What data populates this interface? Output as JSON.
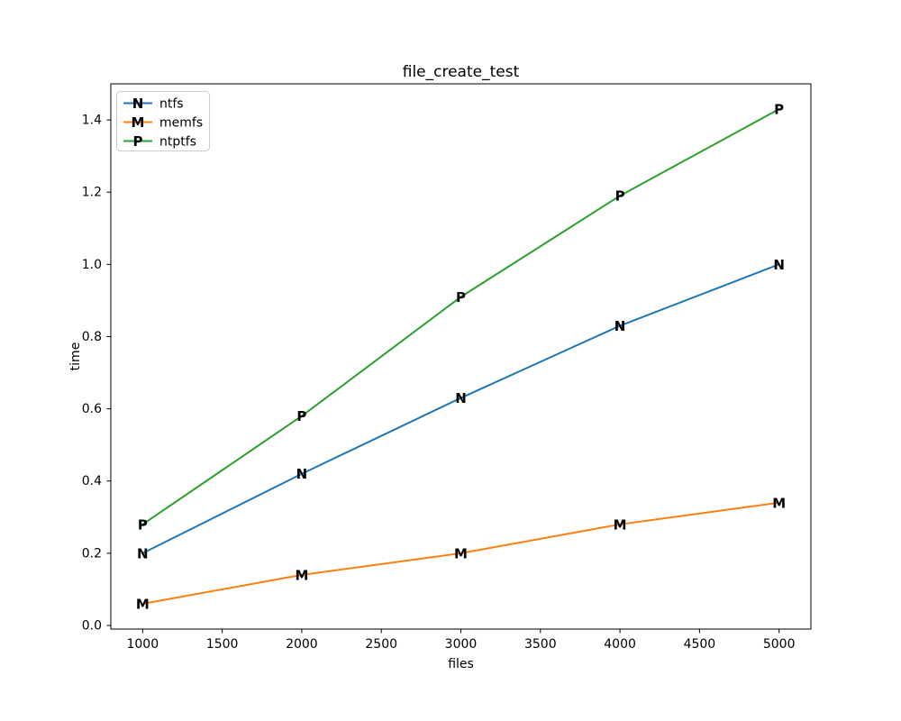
{
  "figure": {
    "background_color": "#ffffff",
    "spine_color": "#000000",
    "tick_color": "#000000",
    "legend_border_color": "#cccccc",
    "legend_background_color": "#ffffff"
  },
  "chart_data": {
    "type": "line",
    "title": "file_create_test",
    "xlabel": "files",
    "ylabel": "time",
    "x": [
      1000,
      2000,
      3000,
      4000,
      5000
    ],
    "series": [
      {
        "name": "ntfs",
        "marker": "N",
        "color": "#1f77b4",
        "values": [
          0.2,
          0.42,
          0.63,
          0.83,
          1.0
        ]
      },
      {
        "name": "memfs",
        "marker": "M",
        "color": "#ff7f0e",
        "values": [
          0.06,
          0.14,
          0.2,
          0.28,
          0.34
        ]
      },
      {
        "name": "ntptfs",
        "marker": "P",
        "color": "#2ca02c",
        "values": [
          0.28,
          0.58,
          0.91,
          1.19,
          1.43
        ]
      }
    ],
    "xlim": [
      800,
      5200
    ],
    "ylim": [
      -0.01,
      1.5
    ],
    "xticks": [
      1000,
      1500,
      2000,
      2500,
      3000,
      3500,
      4000,
      4500,
      5000
    ],
    "yticks": [
      0.0,
      0.2,
      0.4,
      0.6,
      0.8,
      1.0,
      1.2,
      1.4
    ],
    "grid": false,
    "legend_position": "upper-left"
  }
}
